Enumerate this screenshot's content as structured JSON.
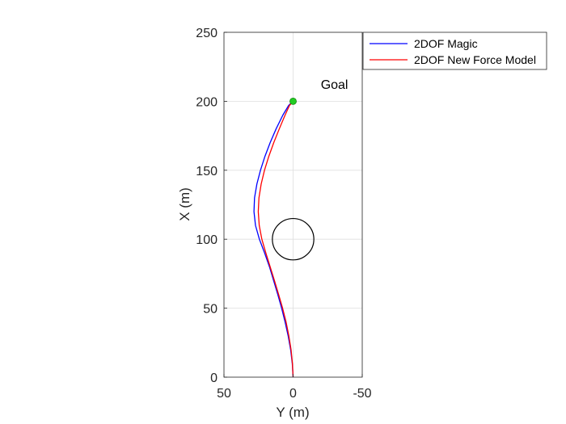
{
  "chart_data": {
    "type": "line",
    "title": "",
    "xlabel": "Y (m)",
    "ylabel": "X (m)",
    "xlim": [
      50,
      -50
    ],
    "ylim": [
      0,
      250
    ],
    "x_reversed": true,
    "xticks": [
      50,
      0,
      -50
    ],
    "yticks": [
      0,
      50,
      100,
      150,
      200,
      250
    ],
    "grid": true,
    "legend_position": "top-right, outside axes",
    "series": [
      {
        "name": "2DOF Magic",
        "color": "#0000ff",
        "points": [
          [
            0,
            0
          ],
          [
            0.6,
            10
          ],
          [
            1.8,
            20
          ],
          [
            3.6,
            30
          ],
          [
            5.8,
            40
          ],
          [
            8.3,
            50
          ],
          [
            11.1,
            60
          ],
          [
            14.1,
            70
          ],
          [
            17.1,
            80
          ],
          [
            20.6,
            90
          ],
          [
            24.4,
            100
          ],
          [
            27.2,
            110
          ],
          [
            28.3,
            120
          ],
          [
            27.9,
            130
          ],
          [
            26.2,
            140
          ],
          [
            23.6,
            150
          ],
          [
            20.4,
            160
          ],
          [
            16.6,
            170
          ],
          [
            12.3,
            180
          ],
          [
            7.4,
            190
          ],
          [
            3.2,
            197
          ],
          [
            0,
            200
          ]
        ]
      },
      {
        "name": "2DOF New Force Model",
        "color": "#ff0000",
        "points": [
          [
            0,
            0
          ],
          [
            0.5,
            10
          ],
          [
            1.5,
            20
          ],
          [
            3.1,
            30
          ],
          [
            5.1,
            40
          ],
          [
            7.6,
            50
          ],
          [
            10.5,
            60
          ],
          [
            13.5,
            70
          ],
          [
            16.6,
            80
          ],
          [
            19.7,
            90
          ],
          [
            22.6,
            100
          ],
          [
            24.5,
            110
          ],
          [
            25.2,
            120
          ],
          [
            24.7,
            130
          ],
          [
            23.1,
            140
          ],
          [
            20.7,
            150
          ],
          [
            17.6,
            160
          ],
          [
            14.0,
            170
          ],
          [
            10.0,
            180
          ],
          [
            5.8,
            190
          ],
          [
            2.6,
            197
          ],
          [
            0,
            200
          ]
        ]
      }
    ],
    "annotations": [
      {
        "text": "Goal",
        "x": -20,
        "y": 209
      }
    ],
    "markers": [
      {
        "name": "goal",
        "x": 0,
        "y": 200,
        "color": "#22cc22"
      }
    ],
    "shapes": [
      {
        "type": "circle",
        "center_x": 0,
        "center_y": 100,
        "radius": 15,
        "color": "#000000"
      }
    ]
  }
}
